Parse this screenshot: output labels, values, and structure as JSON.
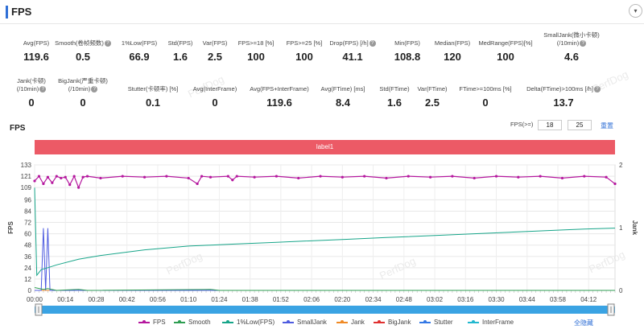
{
  "header": {
    "title": "FPS",
    "collapse_glyph": "▾"
  },
  "stats_row1": [
    {
      "label": "Avg(FPS)",
      "value": "119.6",
      "help": false
    },
    {
      "label": "Smooth(卷帧频数)",
      "value": "0.5",
      "help": true
    },
    {
      "label": "1%Low(FPS)",
      "value": "66.9",
      "help": false
    },
    {
      "label": "Std(FPS)",
      "value": "1.6",
      "help": false
    },
    {
      "label": "Var(FPS)",
      "value": "2.5",
      "help": false
    },
    {
      "label": "FPS>=18 [%]",
      "value": "100",
      "help": false
    },
    {
      "label": "FPS>=25 [%]",
      "value": "100",
      "help": false
    },
    {
      "label": "Drop(FPS) [/h]",
      "value": "41.1",
      "help": true
    },
    {
      "label": "Min(FPS)",
      "value": "108.8",
      "help": false
    },
    {
      "label": "Median(FPS)",
      "value": "120",
      "help": false
    },
    {
      "label": "MedRange(FPS)[%]",
      "value": "100",
      "help": false
    },
    {
      "label": "SmallJank(微小卡顿)",
      "label2": "(/10min)",
      "value": "4.6",
      "help": true
    }
  ],
  "stats_row2": [
    {
      "label": "Jank(卡顿)",
      "label2": "(/10min)",
      "value": "0",
      "help": true
    },
    {
      "label": "BigJank(严重卡顿)",
      "label2": "(/10min)",
      "value": "0",
      "help": true
    },
    {
      "label": "Stutter(卡顿率) [%]",
      "value": "0.1",
      "help": false
    },
    {
      "label": "Avg(InterFrame)",
      "value": "0",
      "help": false
    },
    {
      "label": "Avg(FPS+InterFrame)",
      "value": "119.6",
      "help": false
    },
    {
      "label": "Avg(FTime) [ms]",
      "value": "8.4",
      "help": false
    },
    {
      "label": "Std(FTime)",
      "value": "1.6",
      "help": false
    },
    {
      "label": "Var(FTime)",
      "value": "2.5",
      "help": false
    },
    {
      "label": "FTime>=100ms [%]",
      "value": "0",
      "help": false
    },
    {
      "label": "Delta(FTime)>100ms [/h]",
      "value": "13.7",
      "help": true
    }
  ],
  "watermark": "PerfDog",
  "chart_section": {
    "title": "FPS",
    "threshold_label": "FPS(>=)",
    "threshold1": "18",
    "threshold2": "25",
    "reset_label": "重置",
    "band_label": "label1",
    "hide_all_label": "全隐藏"
  },
  "chart_data": {
    "type": "line",
    "xlabel": "",
    "ylabel": "FPS",
    "ylabel_right": "Jank",
    "ylim": [
      0,
      133
    ],
    "yticks": [
      0,
      12,
      24,
      36,
      48,
      60,
      72,
      84,
      96,
      109,
      121,
      133
    ],
    "ylim_right": [
      0,
      2
    ],
    "yticks_right": [
      0,
      1,
      2
    ],
    "xlim_seconds": [
      0,
      264
    ],
    "xtick_labels": [
      "00:00",
      "00:14",
      "00:28",
      "00:42",
      "00:56",
      "01:10",
      "01:24",
      "01:38",
      "01:52",
      "02:06",
      "02:20",
      "02:34",
      "02:48",
      "03:02",
      "03:16",
      "03:30",
      "03:44",
      "03:58",
      "04:12"
    ],
    "grid": true,
    "series": [
      {
        "name": "FPS",
        "color": "#b5179e",
        "marker": true,
        "points": [
          [
            0,
            116
          ],
          [
            2,
            121
          ],
          [
            4,
            113
          ],
          [
            6,
            120
          ],
          [
            8,
            114
          ],
          [
            10,
            121
          ],
          [
            12,
            119
          ],
          [
            14,
            120
          ],
          [
            16,
            112
          ],
          [
            18,
            121
          ],
          [
            20,
            109
          ],
          [
            22,
            120
          ],
          [
            24,
            121
          ],
          [
            30,
            119
          ],
          [
            40,
            121
          ],
          [
            50,
            120
          ],
          [
            60,
            121
          ],
          [
            70,
            119
          ],
          [
            74,
            113
          ],
          [
            76,
            121
          ],
          [
            80,
            120
          ],
          [
            88,
            121
          ],
          [
            90,
            117
          ],
          [
            92,
            121
          ],
          [
            100,
            120
          ],
          [
            110,
            121
          ],
          [
            120,
            119
          ],
          [
            130,
            121
          ],
          [
            140,
            120
          ],
          [
            150,
            121
          ],
          [
            160,
            119
          ],
          [
            170,
            121
          ],
          [
            180,
            120
          ],
          [
            190,
            121
          ],
          [
            200,
            119
          ],
          [
            210,
            121
          ],
          [
            220,
            120
          ],
          [
            230,
            121
          ],
          [
            240,
            119
          ],
          [
            250,
            121
          ],
          [
            260,
            120
          ],
          [
            264,
            113
          ]
        ]
      },
      {
        "name": "Smooth",
        "color": "#2e9e52",
        "marker": false,
        "points": [
          [
            0,
            3
          ],
          [
            4,
            1
          ],
          [
            6,
            2
          ],
          [
            10,
            0
          ],
          [
            20,
            1
          ],
          [
            24,
            0
          ],
          [
            80,
            1
          ],
          [
            84,
            0
          ],
          [
            264,
            0
          ]
        ]
      },
      {
        "name": "1%Low(FPS)",
        "color": "#17a589",
        "marker": false,
        "points": [
          [
            0,
            109
          ],
          [
            1,
            16
          ],
          [
            3,
            22
          ],
          [
            6,
            24
          ],
          [
            10,
            27
          ],
          [
            20,
            33
          ],
          [
            30,
            37
          ],
          [
            40,
            40
          ],
          [
            50,
            43
          ],
          [
            60,
            45
          ],
          [
            70,
            47
          ],
          [
            80,
            48
          ],
          [
            90,
            49
          ],
          [
            100,
            50
          ],
          [
            110,
            51
          ],
          [
            120,
            52
          ],
          [
            140,
            54
          ],
          [
            160,
            56
          ],
          [
            180,
            58
          ],
          [
            200,
            60
          ],
          [
            220,
            62
          ],
          [
            240,
            64
          ],
          [
            250,
            65
          ],
          [
            264,
            66
          ]
        ]
      },
      {
        "name": "SmallJank",
        "color": "#4f5ce0",
        "marker": false,
        "points": [
          [
            0,
            0
          ],
          [
            3,
            0
          ],
          [
            4,
            66
          ],
          [
            5,
            0
          ],
          [
            6,
            66
          ],
          [
            7,
            0
          ],
          [
            264,
            0
          ]
        ]
      },
      {
        "name": "Jank",
        "color": "#f08a24",
        "marker": false,
        "points": [
          [
            0,
            0
          ],
          [
            264,
            0
          ]
        ]
      },
      {
        "name": "BigJank",
        "color": "#e03131",
        "marker": false,
        "points": [
          [
            0,
            0
          ],
          [
            264,
            0
          ]
        ]
      },
      {
        "name": "Stutter",
        "color": "#3478e5",
        "marker": false,
        "points": [
          [
            0,
            0
          ],
          [
            264,
            0
          ]
        ]
      },
      {
        "name": "InterFrame",
        "color": "#22b8cf",
        "marker": false,
        "points": [
          [
            0,
            0
          ],
          [
            264,
            0
          ]
        ]
      }
    ]
  }
}
